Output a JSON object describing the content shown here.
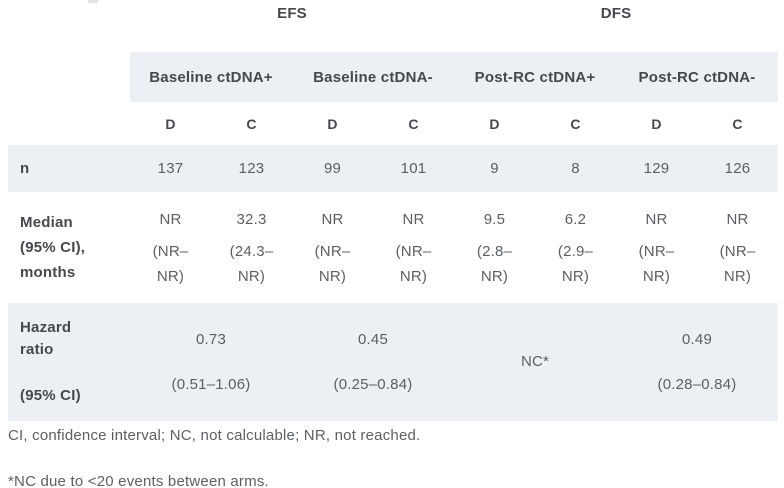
{
  "table": {
    "endpoints": [
      {
        "label": "EFS"
      },
      {
        "label": "DFS"
      }
    ],
    "groups": [
      {
        "label": "Baseline ctDNA+"
      },
      {
        "label": "Baseline ctDNA-"
      },
      {
        "label": "Post-RC ctDNA+"
      },
      {
        "label": "Post-RC ctDNA-"
      }
    ],
    "arm_headers": [
      "D",
      "C",
      "D",
      "C",
      "D",
      "C",
      "D",
      "C"
    ],
    "rows": {
      "n": {
        "label": "n",
        "values": [
          "137",
          "123",
          "99",
          "101",
          "9",
          "8",
          "129",
          "126"
        ]
      },
      "median": {
        "label_lines": [
          "Median",
          "(95% CI),",
          "months"
        ],
        "cells": [
          {
            "value": "NR",
            "ci1": "(NR–",
            "ci2": "NR)"
          },
          {
            "value": "32.3",
            "ci1": "(24.3–",
            "ci2": "NR)"
          },
          {
            "value": "NR",
            "ci1": "(NR–",
            "ci2": "NR)"
          },
          {
            "value": "NR",
            "ci1": "(NR–",
            "ci2": "NR)"
          },
          {
            "value": "9.5",
            "ci1": "(2.8–",
            "ci2": "NR)"
          },
          {
            "value": "6.2",
            "ci1": "(2.9–",
            "ci2": "NR)"
          },
          {
            "value": "NR",
            "ci1": "(NR–",
            "ci2": "NR)"
          },
          {
            "value": "NR",
            "ci1": "(NR–",
            "ci2": "NR)"
          }
        ]
      },
      "hazard": {
        "label_top": "Hazard ratio",
        "label_bottom": "(95% CI)",
        "cells": [
          {
            "value": "0.73",
            "ci": "(0.51–1.06)"
          },
          {
            "value": "0.45",
            "ci": "(0.25–0.84)"
          },
          {
            "value": "NC*",
            "ci": ""
          },
          {
            "value": "0.49",
            "ci": "(0.28–0.84)"
          }
        ]
      }
    }
  },
  "footnotes": [
    "CI, confidence interval; NC, not calculable; NR, not reached.",
    "*NC due to <20 events between arms."
  ],
  "colors": {
    "band_background": "#eceff4",
    "header_text": "#45484c",
    "value_text": "#5b5f63"
  }
}
